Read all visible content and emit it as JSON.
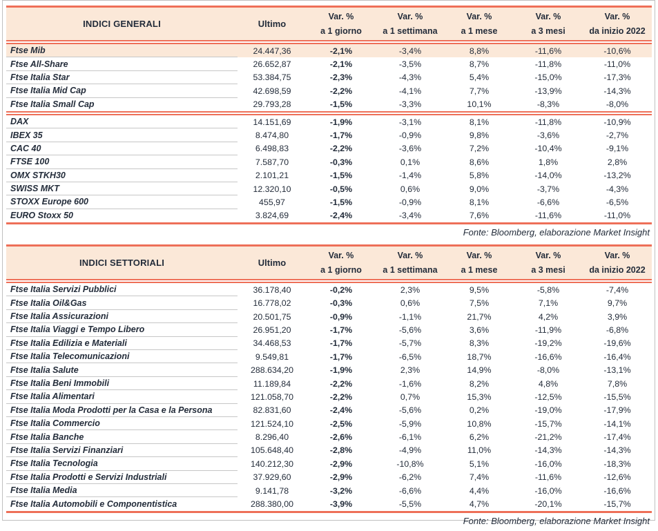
{
  "colors": {
    "accent_line": "#ee6f58",
    "header_background": "#fbe8d8",
    "text": "#232c3a",
    "row_divider": "#c6c6c6"
  },
  "header_labels": {
    "ultimo": "Ultimo",
    "var_pct": "Var. %"
  },
  "source_note": "Fonte: Bloomberg, elaborazione Market Insight",
  "tables": [
    {
      "title": "INDICI GENERALI",
      "periods": [
        "a 1 giorno",
        "a 1 settimana",
        "a 1 mese",
        "a 3 mesi",
        "da inizio 2022"
      ],
      "sections": [
        {
          "rows": [
            {
              "name": "Ftse Mib",
              "highlight": true,
              "ultimo": "24.447,36",
              "vars": [
                "-2,1%",
                "-3,4%",
                "8,8%",
                "-11,6%",
                "-10,6%"
              ]
            },
            {
              "name": "Ftse All-Share",
              "highlight": false,
              "ultimo": "26.652,87",
              "vars": [
                "-2,1%",
                "-3,5%",
                "8,7%",
                "-11,8%",
                "-11,0%"
              ]
            },
            {
              "name": "Ftse Italia Star",
              "highlight": false,
              "ultimo": "53.384,75",
              "vars": [
                "-2,3%",
                "-4,3%",
                "5,4%",
                "-15,0%",
                "-17,3%"
              ]
            },
            {
              "name": "Ftse Italia Mid Cap",
              "highlight": false,
              "ultimo": "42.698,59",
              "vars": [
                "-2,2%",
                "-4,1%",
                "7,7%",
                "-13,9%",
                "-14,3%"
              ]
            },
            {
              "name": "Ftse Italia Small Cap",
              "highlight": false,
              "ultimo": "29.793,28",
              "vars": [
                "-1,5%",
                "-3,3%",
                "10,1%",
                "-8,3%",
                "-8,0%"
              ]
            }
          ]
        },
        {
          "rows": [
            {
              "name": "DAX",
              "highlight": false,
              "ultimo": "14.151,69",
              "vars": [
                "-1,9%",
                "-3,1%",
                "8,1%",
                "-11,8%",
                "-10,9%"
              ]
            },
            {
              "name": "IBEX 35",
              "highlight": false,
              "ultimo": "8.474,80",
              "vars": [
                "-1,7%",
                "-0,9%",
                "9,8%",
                "-3,6%",
                "-2,7%"
              ]
            },
            {
              "name": "CAC 40",
              "highlight": false,
              "ultimo": "6.498,83",
              "vars": [
                "-2,2%",
                "-3,6%",
                "7,2%",
                "-10,4%",
                "-9,1%"
              ]
            },
            {
              "name": "FTSE 100",
              "highlight": false,
              "ultimo": "7.587,70",
              "vars": [
                "-0,3%",
                "0,1%",
                "8,6%",
                "1,8%",
                "2,8%"
              ]
            },
            {
              "name": "OMX STKH30",
              "highlight": false,
              "ultimo": "2.101,21",
              "vars": [
                "-1,5%",
                "-1,4%",
                "5,8%",
                "-14,0%",
                "-13,2%"
              ]
            },
            {
              "name": "SWISS MKT",
              "highlight": false,
              "ultimo": "12.320,10",
              "vars": [
                "-0,5%",
                "0,6%",
                "9,0%",
                "-3,7%",
                "-4,3%"
              ]
            },
            {
              "name": "STOXX Europe 600",
              "highlight": false,
              "ultimo": "455,97",
              "vars": [
                "-1,5%",
                "-0,9%",
                "8,1%",
                "-6,6%",
                "-6,5%"
              ]
            },
            {
              "name": "EURO Stoxx 50",
              "highlight": false,
              "ultimo": "3.824,69",
              "vars": [
                "-2,4%",
                "-3,4%",
                "7,6%",
                "-11,6%",
                "-11,0%"
              ]
            }
          ]
        }
      ]
    },
    {
      "title": "INDICI SETTORIALI",
      "periods": [
        "a 1 giorno",
        "a 1 settimana",
        "a 1 mese",
        "a 3 mesi",
        "da inizio 2022"
      ],
      "sections": [
        {
          "rows": [
            {
              "name": "Ftse Italia Servizi Pubblici",
              "highlight": false,
              "ultimo": "36.178,40",
              "vars": [
                "-0,2%",
                "2,3%",
                "9,5%",
                "-5,8%",
                "-7,4%"
              ]
            },
            {
              "name": "Ftse Italia Oil&Gas",
              "highlight": false,
              "ultimo": "16.778,02",
              "vars": [
                "-0,3%",
                "0,6%",
                "7,5%",
                "7,1%",
                "9,7%"
              ]
            },
            {
              "name": "Ftse Italia Assicurazioni",
              "highlight": false,
              "ultimo": "20.501,75",
              "vars": [
                "-0,9%",
                "-1,1%",
                "21,7%",
                "4,2%",
                "3,9%"
              ]
            },
            {
              "name": "Ftse Italia Viaggi e Tempo Libero",
              "highlight": false,
              "ultimo": "26.951,20",
              "vars": [
                "-1,7%",
                "-5,6%",
                "3,6%",
                "-11,9%",
                "-6,8%"
              ]
            },
            {
              "name": "Ftse Italia Edilizia e Materiali",
              "highlight": false,
              "ultimo": "34.468,53",
              "vars": [
                "-1,7%",
                "-5,7%",
                "8,3%",
                "-19,2%",
                "-19,6%"
              ]
            },
            {
              "name": "Ftse Italia Telecomunicazioni",
              "highlight": false,
              "ultimo": "9.549,81",
              "vars": [
                "-1,7%",
                "-6,5%",
                "18,7%",
                "-16,6%",
                "-16,4%"
              ]
            },
            {
              "name": "Ftse Italia Salute",
              "highlight": false,
              "ultimo": "288.634,20",
              "vars": [
                "-1,9%",
                "2,3%",
                "14,9%",
                "-8,0%",
                "-13,1%"
              ]
            },
            {
              "name": "Ftse Italia Beni Immobili",
              "highlight": false,
              "ultimo": "11.189,84",
              "vars": [
                "-2,2%",
                "-1,6%",
                "8,2%",
                "4,8%",
                "7,8%"
              ]
            },
            {
              "name": "Ftse Italia Alimentari",
              "highlight": false,
              "ultimo": "121.058,70",
              "vars": [
                "-2,2%",
                "0,7%",
                "15,3%",
                "-12,5%",
                "-15,5%"
              ]
            },
            {
              "name": "Ftse Italia Moda Prodotti per la Casa e la Persona",
              "highlight": false,
              "ultimo": "82.831,60",
              "vars": [
                "-2,4%",
                "-5,6%",
                "0,2%",
                "-19,0%",
                "-17,9%"
              ]
            },
            {
              "name": "Ftse Italia Commercio",
              "highlight": false,
              "ultimo": "121.524,10",
              "vars": [
                "-2,5%",
                "-5,9%",
                "10,8%",
                "-15,7%",
                "-14,1%"
              ]
            },
            {
              "name": "Ftse Italia Banche",
              "highlight": false,
              "ultimo": "8.296,40",
              "vars": [
                "-2,6%",
                "-6,1%",
                "6,2%",
                "-21,2%",
                "-17,4%"
              ]
            },
            {
              "name": "Ftse Italia Servizi Finanziari",
              "highlight": false,
              "ultimo": "105.648,40",
              "vars": [
                "-2,8%",
                "-4,9%",
                "11,0%",
                "-14,3%",
                "-14,3%"
              ]
            },
            {
              "name": "Ftse Italia Tecnologia",
              "highlight": false,
              "ultimo": "140.212,30",
              "vars": [
                "-2,9%",
                "-10,8%",
                "5,1%",
                "-16,0%",
                "-18,3%"
              ]
            },
            {
              "name": "Ftse Italia Prodotti e Servizi Industriali",
              "highlight": false,
              "ultimo": "37.929,60",
              "vars": [
                "-2,9%",
                "-6,2%",
                "7,4%",
                "-11,6%",
                "-12,6%"
              ]
            },
            {
              "name": "Ftse Italia Media",
              "highlight": false,
              "ultimo": "9.141,78",
              "vars": [
                "-3,2%",
                "-6,6%",
                "4,4%",
                "-16,0%",
                "-16,6%"
              ]
            },
            {
              "name": "Ftse Italia Automobili e Componentistica",
              "highlight": false,
              "ultimo": "288.380,00",
              "vars": [
                "-3,9%",
                "-5,5%",
                "4,7%",
                "-20,1%",
                "-15,7%"
              ]
            }
          ]
        }
      ]
    }
  ]
}
